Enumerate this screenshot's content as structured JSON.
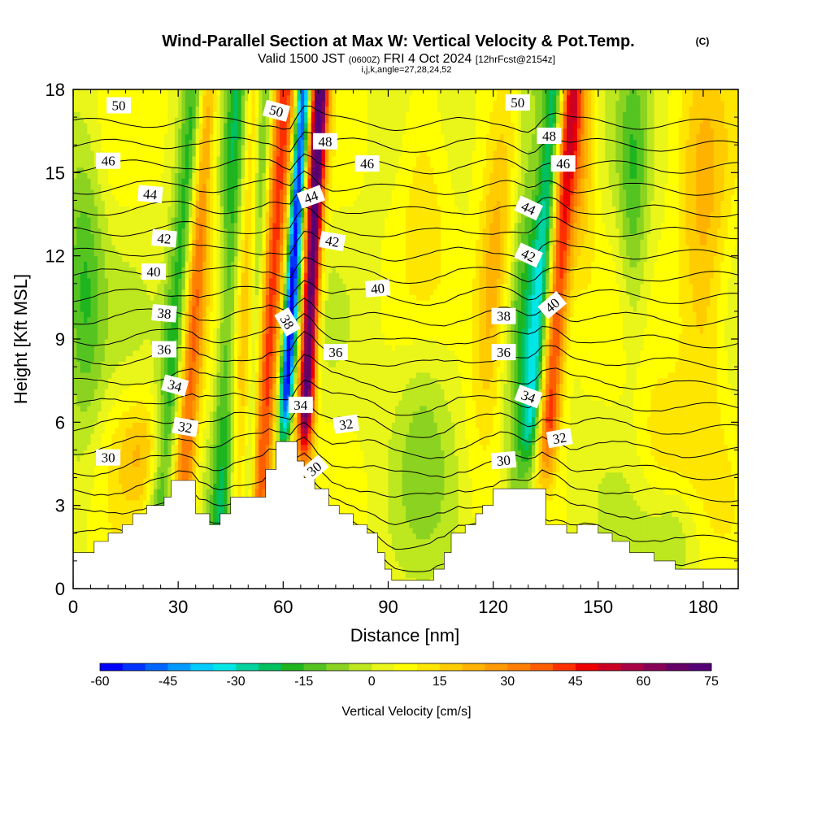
{
  "chart_data": {
    "type": "heatmap",
    "title": {
      "main": "Wind-Parallel Section at Max W: Vertical Velocity & Pot.Temp.",
      "copyright": "(C)",
      "valid_prefix": "Valid 1500 JST",
      "valid_utc": "(0600Z)",
      "valid_date": "FRI 4 Oct 2024",
      "forecast": "[12hrFcst@2154z]",
      "indices": "i,j,k,angle=27,28,24,52"
    },
    "xlabel": "Distance [nm]",
    "ylabel": "Height [Kft MSL]",
    "xlim": [
      0,
      190
    ],
    "ylim": [
      0,
      18
    ],
    "x_ticks": [
      "0",
      "30",
      "60",
      "90",
      "120",
      "150",
      "180"
    ],
    "y_ticks": [
      "0",
      "3",
      "6",
      "9",
      "12",
      "15",
      "18"
    ],
    "colorbar": {
      "label": "Vertical Velocity [cm/s]",
      "range": [
        -60,
        75
      ],
      "step": 5,
      "tick_labels": [
        "-60",
        "-45",
        "-30",
        "-15",
        "0",
        "15",
        "30",
        "45",
        "60",
        "75"
      ],
      "colors": [
        "#0000ff",
        "#0033ff",
        "#0066ff",
        "#0099ff",
        "#00ccff",
        "#00e5e5",
        "#00d2a0",
        "#00c060",
        "#1fb51f",
        "#55c421",
        "#8cd321",
        "#bde71e",
        "#eaf51a",
        "#ffff00",
        "#ffe600",
        "#ffcc00",
        "#ffb300",
        "#ff9900",
        "#ff7f00",
        "#ff5e00",
        "#ff3000",
        "#ee0000",
        "#cc0022",
        "#aa0044",
        "#880055",
        "#660066",
        "#550077"
      ]
    },
    "terrain_kft": [
      [
        0,
        1.3
      ],
      [
        6,
        1.3
      ],
      [
        6,
        1.7
      ],
      [
        10,
        1.7
      ],
      [
        10,
        2.0
      ],
      [
        14,
        2.0
      ],
      [
        14,
        2.3
      ],
      [
        17,
        2.3
      ],
      [
        17,
        2.7
      ],
      [
        21,
        2.7
      ],
      [
        21,
        3.0
      ],
      [
        26,
        3.0
      ],
      [
        26,
        3.3
      ],
      [
        28,
        3.3
      ],
      [
        28,
        3.9
      ],
      [
        35,
        3.9
      ],
      [
        35,
        2.7
      ],
      [
        39,
        2.7
      ],
      [
        39,
        2.3
      ],
      [
        42,
        2.3
      ],
      [
        42,
        2.7
      ],
      [
        45,
        2.7
      ],
      [
        45,
        3.3
      ],
      [
        55,
        3.3
      ],
      [
        55,
        4.3
      ],
      [
        58,
        4.3
      ],
      [
        58,
        5.3
      ],
      [
        64,
        5.3
      ],
      [
        64,
        4.6
      ],
      [
        66,
        4.6
      ],
      [
        66,
        4.0
      ],
      [
        69,
        4.0
      ],
      [
        69,
        3.6
      ],
      [
        73,
        3.6
      ],
      [
        73,
        3.0
      ],
      [
        76,
        3.0
      ],
      [
        76,
        2.7
      ],
      [
        80,
        2.7
      ],
      [
        80,
        2.3
      ],
      [
        84,
        2.3
      ],
      [
        84,
        2.0
      ],
      [
        87,
        2.0
      ],
      [
        87,
        1.3
      ],
      [
        89,
        1.3
      ],
      [
        89,
        0.7
      ],
      [
        91,
        0.7
      ],
      [
        91,
        0.3
      ],
      [
        103,
        0.3
      ],
      [
        103,
        0.7
      ],
      [
        106,
        0.7
      ],
      [
        106,
        1.3
      ],
      [
        108,
        1.3
      ],
      [
        108,
        2.0
      ],
      [
        112,
        2.0
      ],
      [
        112,
        2.3
      ],
      [
        115,
        2.3
      ],
      [
        115,
        2.7
      ],
      [
        117,
        2.7
      ],
      [
        117,
        3.0
      ],
      [
        120,
        3.0
      ],
      [
        120,
        3.6
      ],
      [
        135,
        3.6
      ],
      [
        135,
        2.3
      ],
      [
        141,
        2.3
      ],
      [
        141,
        2.0
      ],
      [
        144,
        2.0
      ],
      [
        144,
        2.3
      ],
      [
        150,
        2.3
      ],
      [
        150,
        2.0
      ],
      [
        154,
        2.0
      ],
      [
        154,
        1.7
      ],
      [
        159,
        1.7
      ],
      [
        159,
        1.3
      ],
      [
        166,
        1.3
      ],
      [
        166,
        1.0
      ],
      [
        172,
        1.0
      ],
      [
        172,
        0.7
      ],
      [
        190,
        0.7
      ]
    ],
    "potential_temperature": {
      "unit": "Kelvin-offset labels as printed",
      "levels": [
        29,
        30,
        31,
        32,
        33,
        34,
        35,
        36,
        37,
        38,
        39,
        40,
        41,
        42,
        43,
        44,
        45,
        46,
        47,
        48,
        49,
        50,
        51
      ],
      "labels": [
        {
          "text": "50",
          "x": 13,
          "y": 17.4,
          "rotate": 0
        },
        {
          "text": "46",
          "x": 10,
          "y": 15.4,
          "rotate": 0
        },
        {
          "text": "44",
          "x": 22,
          "y": 14.2,
          "rotate": 5
        },
        {
          "text": "42",
          "x": 26,
          "y": 12.6,
          "rotate": 5
        },
        {
          "text": "40",
          "x": 23,
          "y": 11.4,
          "rotate": 0
        },
        {
          "text": "38",
          "x": 26,
          "y": 9.9,
          "rotate": 5
        },
        {
          "text": "36",
          "x": 26,
          "y": 8.6,
          "rotate": 0
        },
        {
          "text": "34",
          "x": 29,
          "y": 7.3,
          "rotate": 15
        },
        {
          "text": "32",
          "x": 32,
          "y": 5.8,
          "rotate": 10
        },
        {
          "text": "30",
          "x": 10,
          "y": 4.7,
          "rotate": 0
        },
        {
          "text": "50",
          "x": 58,
          "y": 17.2,
          "rotate": 15
        },
        {
          "text": "48",
          "x": 72,
          "y": 16.1,
          "rotate": 0
        },
        {
          "text": "44",
          "x": 68,
          "y": 14.1,
          "rotate": -20
        },
        {
          "text": "42",
          "x": 74,
          "y": 12.5,
          "rotate": 10
        },
        {
          "text": "38",
          "x": 61,
          "y": 9.6,
          "rotate": 60
        },
        {
          "text": "36",
          "x": 75,
          "y": 8.5,
          "rotate": 0
        },
        {
          "text": "34",
          "x": 65,
          "y": 6.6,
          "rotate": 0
        },
        {
          "text": "32",
          "x": 78,
          "y": 5.9,
          "rotate": -8
        },
        {
          "text": "30",
          "x": 69,
          "y": 4.3,
          "rotate": -40
        },
        {
          "text": "46",
          "x": 84,
          "y": 15.3,
          "rotate": 0
        },
        {
          "text": "40",
          "x": 87,
          "y": 10.8,
          "rotate": -5
        },
        {
          "text": "50",
          "x": 127,
          "y": 17.5,
          "rotate": 0
        },
        {
          "text": "48",
          "x": 136,
          "y": 16.3,
          "rotate": 0
        },
        {
          "text": "46",
          "x": 140,
          "y": 15.3,
          "rotate": 0
        },
        {
          "text": "44",
          "x": 130,
          "y": 13.7,
          "rotate": 25
        },
        {
          "text": "42",
          "x": 130,
          "y": 12.0,
          "rotate": 25
        },
        {
          "text": "40",
          "x": 137,
          "y": 10.2,
          "rotate": -40
        },
        {
          "text": "38",
          "x": 123,
          "y": 9.8,
          "rotate": 0
        },
        {
          "text": "36",
          "x": 123,
          "y": 8.5,
          "rotate": 0
        },
        {
          "text": "34",
          "x": 130,
          "y": 6.9,
          "rotate": 20
        },
        {
          "text": "32",
          "x": 139,
          "y": 5.4,
          "rotate": -10
        },
        {
          "text": "30",
          "x": 123,
          "y": 4.6,
          "rotate": -5
        }
      ]
    },
    "vertical_velocity_features": [
      {
        "description": "strong updraft core",
        "x_center": 67,
        "peak_cm_s": 70
      },
      {
        "description": "strong downdraft core",
        "x_center": 61,
        "peak_cm_s": -55
      },
      {
        "description": "updraft",
        "x_center": 137,
        "peak_cm_s": 40
      },
      {
        "description": "downdraft",
        "x_center": 132,
        "peak_cm_s": -30
      },
      {
        "description": "updraft",
        "x_center": 34,
        "peak_cm_s": 35
      },
      {
        "description": "downdraft",
        "x_center": 29,
        "peak_cm_s": -25
      },
      {
        "description": "updraft",
        "x_center": 56,
        "peak_cm_s": 35
      },
      {
        "description": "downdraft",
        "x_center": 44,
        "peak_cm_s": -20
      }
    ]
  }
}
